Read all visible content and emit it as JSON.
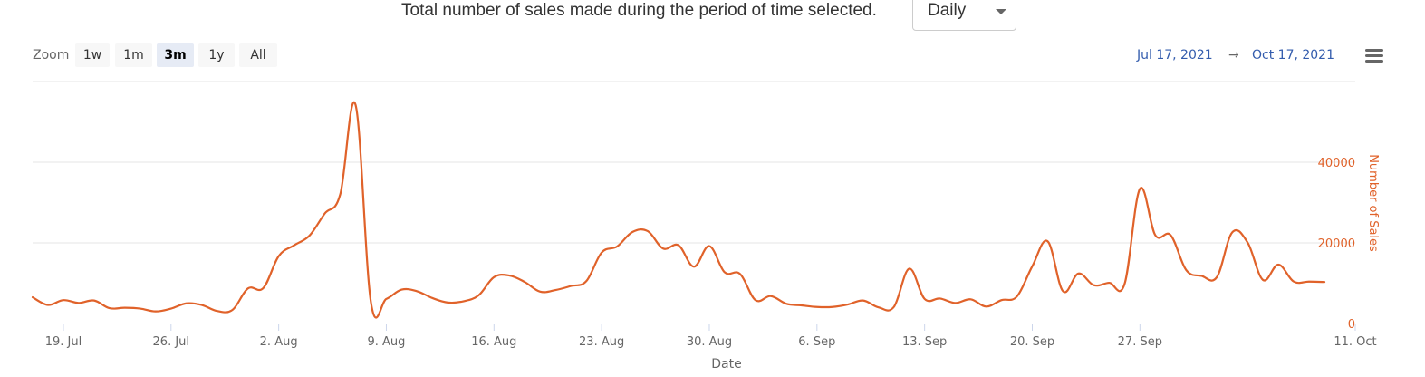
{
  "header": {
    "text": "Total number of sales made during the period of time selected."
  },
  "period_select": {
    "selected": "Daily"
  },
  "zoom": {
    "label": "Zoom",
    "buttons": [
      {
        "label": "1w",
        "active": false
      },
      {
        "label": "1m",
        "active": false
      },
      {
        "label": "3m",
        "active": true
      },
      {
        "label": "1y",
        "active": false
      },
      {
        "label": "All",
        "active": false
      }
    ]
  },
  "range": {
    "from": "Jul 17, 2021",
    "arrow": "→",
    "to": "Oct 17, 2021"
  },
  "menu": {
    "icon": "hamburger-menu-icon"
  },
  "chart_data": {
    "type": "line",
    "title": "",
    "xlabel": "Date",
    "ylabel": "Number of Sales",
    "y_axis_position": "right",
    "ylim": [
      0,
      60000
    ],
    "yticks": [
      0,
      20000,
      40000
    ],
    "xlim": [
      "2021-07-17",
      "2021-10-11"
    ],
    "x_tick_labels": [
      {
        "date": "2021-07-19",
        "label": "19. Jul"
      },
      {
        "date": "2021-07-26",
        "label": "26. Jul"
      },
      {
        "date": "2021-08-02",
        "label": "2. Aug"
      },
      {
        "date": "2021-08-09",
        "label": "9. Aug"
      },
      {
        "date": "2021-08-16",
        "label": "16. Aug"
      },
      {
        "date": "2021-08-23",
        "label": "23. Aug"
      },
      {
        "date": "2021-08-30",
        "label": "30. Aug"
      },
      {
        "date": "2021-09-06",
        "label": "6. Sep"
      },
      {
        "date": "2021-09-13",
        "label": "13. Sep"
      },
      {
        "date": "2021-09-20",
        "label": "20. Sep"
      },
      {
        "date": "2021-09-27",
        "label": "27. Sep"
      },
      {
        "date": "2021-10-11",
        "label": "11. Oct"
      }
    ],
    "grid": true,
    "legend": "none",
    "line_color": "#e0622a",
    "series": [
      {
        "x": [
          "2021-07-17",
          "2021-07-18",
          "2021-07-19",
          "2021-07-20",
          "2021-07-21",
          "2021-07-22",
          "2021-07-23",
          "2021-07-24",
          "2021-07-25",
          "2021-07-26",
          "2021-07-27",
          "2021-07-28",
          "2021-07-29",
          "2021-07-30",
          "2021-07-31",
          "2021-08-01",
          "2021-08-02",
          "2021-08-03",
          "2021-08-04",
          "2021-08-05",
          "2021-08-06",
          "2021-08-07",
          "2021-08-08",
          "2021-08-09",
          "2021-08-10",
          "2021-08-11",
          "2021-08-12",
          "2021-08-13",
          "2021-08-14",
          "2021-08-15",
          "2021-08-16",
          "2021-08-17",
          "2021-08-18",
          "2021-08-19",
          "2021-08-20",
          "2021-08-21",
          "2021-08-22",
          "2021-08-23",
          "2021-08-24",
          "2021-08-25",
          "2021-08-26",
          "2021-08-27",
          "2021-08-28",
          "2021-08-29",
          "2021-08-30",
          "2021-08-31",
          "2021-09-01",
          "2021-09-02",
          "2021-09-03",
          "2021-09-04",
          "2021-09-05",
          "2021-09-06",
          "2021-09-07",
          "2021-09-08",
          "2021-09-09",
          "2021-09-10",
          "2021-09-11",
          "2021-09-12",
          "2021-09-13",
          "2021-09-14",
          "2021-09-15",
          "2021-09-16",
          "2021-09-17",
          "2021-09-18",
          "2021-09-19",
          "2021-09-20",
          "2021-09-21",
          "2021-09-22",
          "2021-09-23",
          "2021-09-24",
          "2021-09-25",
          "2021-09-26",
          "2021-09-27",
          "2021-09-28",
          "2021-09-29",
          "2021-09-30",
          "2021-10-01",
          "2021-10-02",
          "2021-10-03",
          "2021-10-04",
          "2021-10-05",
          "2021-10-06",
          "2021-10-07",
          "2021-10-08",
          "2021-10-09",
          "2021-10-10",
          "2021-10-11"
        ],
        "y": [
          6500,
          4600,
          5800,
          5100,
          5700,
          3800,
          3900,
          3700,
          3000,
          3700,
          5000,
          4600,
          3100,
          3400,
          8700,
          8800,
          16700,
          19400,
          21800,
          27300,
          32000,
          54200,
          5200,
          6100,
          8400,
          8000,
          6300,
          5200,
          5500,
          7000,
          11500,
          11900,
          10300,
          7900,
          8300,
          9300,
          10500,
          17600,
          19100,
          22700,
          22900,
          18600,
          19400,
          14100,
          19200,
          12700,
          12300,
          5800,
          6800,
          4900,
          4500,
          4100,
          4100,
          4700,
          5700,
          4000,
          4100,
          13600,
          6100,
          6200,
          5100,
          6000,
          4200,
          5800,
          6700,
          14200,
          20400,
          8000,
          12400,
          9500,
          10100,
          9800,
          33400,
          21900,
          21900,
          13300,
          11800,
          11500,
          22600,
          20100,
          10800,
          14600,
          10400,
          10400,
          10300,
          null,
          null
        ]
      }
    ]
  }
}
